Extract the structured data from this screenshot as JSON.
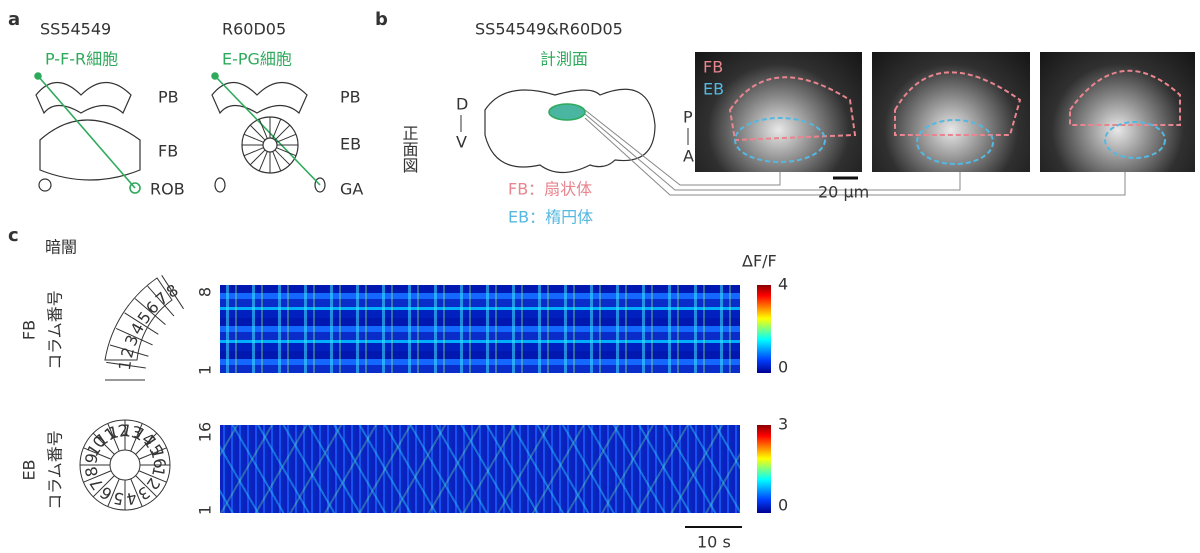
{
  "panel_a": {
    "label": "a",
    "left": {
      "line": "SS54549",
      "cell": "P-F-R細胞",
      "regions": [
        "PB",
        "FB",
        "ROB"
      ]
    },
    "right": {
      "line": "R60D05",
      "cell": "E-PG細胞",
      "regions": [
        "PB",
        "EB",
        "GA"
      ]
    }
  },
  "panel_b": {
    "label": "b",
    "line": "SS54549&R60D05",
    "plane": "計測面",
    "view": "正面図",
    "axis_top": "D",
    "axis_bottom": "V",
    "legend": [
      "FB：扇状体",
      "EB：楕円体"
    ],
    "image_labels": [
      "FB",
      "EB"
    ],
    "image_axis_top": "P",
    "image_axis_bottom": "A",
    "scale": "20 μm"
  },
  "panel_c": {
    "label": "c",
    "condition": "暗闇",
    "colorbar_title": "ΔF/F",
    "fb": {
      "region": "FB",
      "axis": "コラム番号",
      "row_top": "8",
      "row_bottom": "1",
      "cbar_max": "4",
      "cbar_min": "0",
      "columns": [
        "1",
        "2",
        "3",
        "4",
        "5",
        "6",
        "7",
        "8"
      ]
    },
    "eb": {
      "region": "EB",
      "axis": "コラム番号",
      "row_top": "16",
      "row_bottom": "1",
      "cbar_max": "3",
      "cbar_min": "0",
      "columns": [
        "1",
        "2",
        "3",
        "4",
        "5",
        "6",
        "7",
        "8",
        "9",
        "10",
        "11",
        "12",
        "13",
        "14",
        "15",
        "16"
      ]
    },
    "time_scale": "10 s"
  }
}
